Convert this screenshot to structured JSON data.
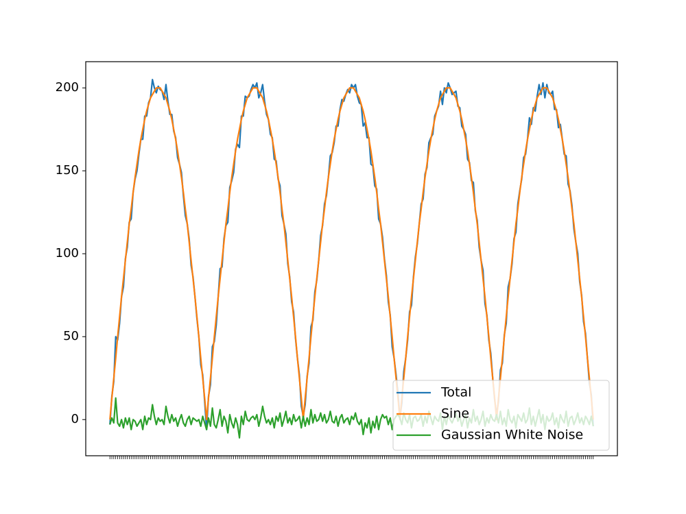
{
  "chart_data": {
    "type": "line",
    "x": [
      0,
      1,
      2,
      3,
      4,
      5,
      6,
      7,
      8,
      9,
      10,
      11,
      12,
      13,
      14,
      15,
      16,
      17,
      18,
      19,
      20,
      21,
      22,
      23,
      24,
      25,
      26,
      27,
      28,
      29,
      30,
      31,
      32,
      33,
      34,
      35,
      36,
      37,
      38,
      39,
      40,
      41,
      42,
      43,
      44,
      45,
      46,
      47,
      48,
      49,
      50,
      51,
      52,
      53,
      54,
      55,
      56,
      57,
      58,
      59,
      60,
      61,
      62,
      63,
      64,
      65,
      66,
      67,
      68,
      69,
      70,
      71,
      72,
      73,
      74,
      75,
      76,
      77,
      78,
      79,
      80,
      81,
      82,
      83,
      84,
      85,
      86,
      87,
      88,
      89,
      90,
      91,
      92,
      93,
      94,
      95,
      96,
      97,
      98,
      99,
      100,
      101,
      102,
      103,
      104,
      105,
      106,
      107,
      108,
      109,
      110,
      111,
      112,
      113,
      114,
      115,
      116,
      117,
      118,
      119,
      120,
      121,
      122,
      123,
      124,
      125,
      126,
      127,
      128,
      129,
      130,
      131,
      132,
      133,
      134,
      135,
      136,
      137,
      138,
      139,
      140,
      141,
      142,
      143,
      144,
      145,
      146,
      147,
      148,
      149,
      150,
      151,
      152,
      153,
      154,
      155,
      156,
      157,
      158,
      159,
      160,
      161,
      162,
      163,
      164,
      165,
      166,
      167,
      168,
      169,
      170,
      171,
      172,
      173,
      174,
      175,
      176,
      177,
      178,
      179,
      180,
      181,
      182,
      183,
      184,
      185,
      186,
      187,
      188,
      189,
      190,
      191,
      192,
      193,
      194,
      195,
      196,
      197,
      198,
      199,
      200,
      201,
      202,
      203,
      204,
      205,
      206,
      207,
      208,
      209,
      210,
      211,
      212,
      213,
      214,
      215,
      216,
      217,
      218,
      219,
      220,
      221,
      222,
      223,
      224,
      225,
      226,
      227,
      228,
      229,
      230,
      231,
      232,
      233,
      234,
      235,
      236,
      237,
      238,
      239,
      240,
      241,
      242,
      243,
      244,
      245,
      246,
      247,
      248,
      249,
      250
    ],
    "series": [
      {
        "name": "Total",
        "color": "#1f77b4",
        "values": [
          -3,
          14,
          23,
          50,
          48,
          58,
          74,
          80,
          97,
          104,
          119,
          121,
          137,
          145,
          150,
          160,
          169,
          169,
          183,
          183,
          191,
          194,
          205,
          200,
          197,
          201,
          199,
          198,
          193,
          202,
          192,
          184,
          184,
          174,
          170,
          158,
          154,
          149,
          135,
          123,
          118,
          109,
          93,
          86,
          74,
          61,
          50,
          33,
          27,
          11,
          -6,
          14,
          21,
          44,
          47,
          57,
          74,
          91,
          92,
          109,
          117,
          119,
          140,
          144,
          149,
          163,
          166,
          164,
          183,
          183,
          195,
          194,
          195,
          199,
          202,
          200,
          203,
          194,
          197,
          202,
          192,
          184,
          181,
          172,
          170,
          157,
          156,
          145,
          141,
          123,
          118,
          112,
          94,
          86,
          71,
          65,
          49,
          37,
          27,
          8,
          2,
          9,
          26,
          34,
          56,
          60,
          77,
          84,
          96,
          111,
          117,
          130,
          135,
          146,
          159,
          161,
          167,
          177,
          177,
          187,
          193,
          192,
          196,
          199,
          197,
          202,
          200,
          202,
          195,
          191,
          190,
          177,
          179,
          170,
          170,
          154,
          153,
          141,
          139,
          121,
          118,
          110,
          97,
          87,
          71,
          63,
          44,
          37,
          27,
          16,
          1,
          10,
          29,
          37,
          48,
          65,
          69,
          86,
          98,
          106,
          118,
          130,
          133,
          148,
          152,
          167,
          170,
          172,
          183,
          186,
          189,
          198,
          190,
          200,
          197,
          203,
          200,
          196,
          197,
          198,
          189,
          188,
          177,
          175,
          172,
          157,
          155,
          144,
          143,
          126,
          120,
          104,
          96,
          90,
          70,
          63,
          48,
          40,
          25,
          12,
          3,
          11,
          30,
          34,
          51,
          58,
          80,
          85,
          94,
          109,
          113,
          130,
          138,
          145,
          158,
          160,
          169,
          182,
          178,
          188,
          186,
          195,
          202,
          196,
          203,
          194,
          202,
          197,
          196,
          198,
          187,
          187,
          176,
          178,
          169,
          160,
          159,
          142,
          138,
          129,
          115,
          107,
          100,
          83,
          75,
          59,
          52,
          37,
          22,
          15,
          -4
        ]
      },
      {
        "name": "Sine",
        "color": "#ff7f0e",
        "values": [
          0,
          13,
          25,
          37,
          50,
          62,
          74,
          85,
          96,
          107,
          118,
          127,
          137,
          146,
          154,
          162,
          169,
          175,
          181,
          186,
          190,
          194,
          196,
          198,
          200,
          200,
          200,
          198,
          196,
          194,
          190,
          186,
          181,
          175,
          169,
          162,
          154,
          146,
          137,
          127,
          118,
          107,
          96,
          85,
          74,
          62,
          50,
          37,
          25,
          13,
          0,
          13,
          25,
          37,
          50,
          62,
          74,
          85,
          96,
          107,
          118,
          127,
          137,
          146,
          154,
          162,
          169,
          175,
          181,
          186,
          190,
          194,
          196,
          198,
          200,
          200,
          200,
          198,
          196,
          194,
          190,
          186,
          181,
          175,
          169,
          162,
          154,
          146,
          137,
          127,
          118,
          107,
          96,
          85,
          74,
          62,
          50,
          37,
          25,
          13,
          0,
          13,
          25,
          37,
          50,
          62,
          74,
          85,
          96,
          107,
          118,
          127,
          137,
          146,
          154,
          162,
          169,
          175,
          181,
          186,
          190,
          194,
          196,
          198,
          200,
          200,
          200,
          198,
          196,
          194,
          190,
          186,
          181,
          175,
          169,
          162,
          154,
          146,
          137,
          127,
          118,
          107,
          96,
          85,
          74,
          62,
          50,
          37,
          25,
          13,
          0,
          13,
          25,
          37,
          50,
          62,
          74,
          85,
          96,
          107,
          118,
          127,
          137,
          146,
          154,
          162,
          169,
          175,
          181,
          186,
          190,
          194,
          196,
          198,
          200,
          200,
          200,
          198,
          196,
          194,
          190,
          186,
          181,
          175,
          169,
          162,
          154,
          146,
          137,
          127,
          118,
          107,
          96,
          85,
          74,
          62,
          50,
          37,
          25,
          13,
          0,
          13,
          25,
          37,
          50,
          62,
          74,
          85,
          96,
          107,
          118,
          127,
          137,
          146,
          154,
          162,
          169,
          175,
          181,
          186,
          190,
          194,
          196,
          198,
          200,
          200,
          200,
          198,
          196,
          194,
          190,
          186,
          181,
          175,
          169,
          162,
          154,
          146,
          137,
          127,
          118,
          107,
          96,
          85,
          74,
          62,
          50,
          37,
          25,
          13,
          0
        ]
      },
      {
        "name": "Gaussian White Noise",
        "color": "#2ca02c",
        "values": [
          -3,
          1,
          -2,
          13,
          -2,
          -4,
          0,
          -5,
          1,
          -3,
          1,
          -6,
          0,
          -1,
          -4,
          -2,
          0,
          -6,
          2,
          -3,
          1,
          0,
          9,
          2,
          -3,
          1,
          -1,
          0,
          -3,
          8,
          2,
          -2,
          3,
          -1,
          1,
          -4,
          0,
          3,
          -2,
          -4,
          0,
          2,
          -3,
          1,
          0,
          -1,
          0,
          -4,
          2,
          -2,
          -6,
          1,
          -4,
          7,
          -3,
          -5,
          0,
          6,
          -4,
          2,
          -1,
          -8,
          3,
          -2,
          -5,
          1,
          -3,
          -11,
          2,
          -3,
          5,
          0,
          -1,
          1,
          2,
          0,
          3,
          -4,
          1,
          8,
          2,
          -2,
          0,
          -3,
          1,
          -5,
          2,
          -1,
          4,
          -4,
          0,
          5,
          -2,
          1,
          -3,
          3,
          -1,
          0,
          2,
          -5,
          2,
          -4,
          1,
          -3,
          6,
          -2,
          3,
          -1,
          0,
          4,
          -1,
          3,
          -2,
          0,
          5,
          -1,
          -2,
          2,
          -4,
          1,
          3,
          -2,
          0,
          1,
          -3,
          2,
          0,
          4,
          -1,
          -3,
          0,
          -9,
          -2,
          -5,
          1,
          -8,
          -1,
          -5,
          2,
          -6,
          0,
          3,
          1,
          2,
          -3,
          1,
          -6,
          0,
          2,
          3,
          1,
          -3,
          4,
          0,
          -2,
          3,
          -5,
          1,
          2,
          -1,
          0,
          3,
          -4,
          2,
          -2,
          5,
          1,
          -3,
          2,
          0,
          -1,
          4,
          -6,
          2,
          -3,
          3,
          0,
          -2,
          1,
          4,
          -1,
          2,
          -4,
          0,
          3,
          -5,
          1,
          -2,
          6,
          -1,
          2,
          -3,
          0,
          5,
          -4,
          1,
          -2,
          3,
          0,
          -1,
          3,
          -2,
          5,
          -3,
          1,
          -4,
          6,
          0,
          -2,
          2,
          -5,
          3,
          1,
          -1,
          4,
          -2,
          0,
          7,
          -3,
          2,
          -4,
          1,
          6,
          -2,
          3,
          -6,
          2,
          -1,
          0,
          4,
          -3,
          1,
          -5,
          3,
          0,
          -2,
          5,
          -4,
          1,
          2,
          -3,
          0,
          4,
          -2,
          1,
          -3,
          2,
          0,
          -3,
          2,
          -4
        ]
      }
    ],
    "xlim": [
      -12.5,
      262.5
    ],
    "ylim": [
      -21.8,
      215.8
    ],
    "yticks": [
      0,
      50,
      100,
      150,
      200
    ],
    "legend": "lower right"
  }
}
